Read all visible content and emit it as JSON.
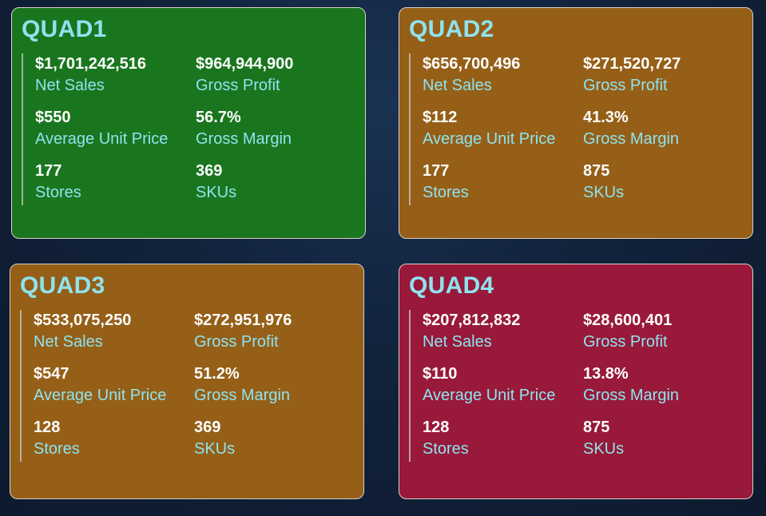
{
  "colors": {
    "green": "#1a761e",
    "orange": "#955f17",
    "red": "#981939",
    "title_accent": "#8fe3ef",
    "value_text": "#ffffff"
  },
  "quadrants": [
    {
      "title": "QUAD1",
      "color": "#1a761e",
      "net_sales": "$1,701,242,516",
      "net_sales_label": "Net Sales",
      "gross_profit": "$964,944,900",
      "gross_profit_label": "Gross Profit",
      "avg_unit_price": "$550",
      "avg_unit_price_label": "Average Unit Price",
      "gross_margin": "56.7%",
      "gross_margin_label": "Gross Margin",
      "stores": "177",
      "stores_label": "Stores",
      "skus": "369",
      "skus_label": "SKUs"
    },
    {
      "title": "QUAD2",
      "color": "#955f17",
      "net_sales": "$656,700,496",
      "net_sales_label": "Net Sales",
      "gross_profit": "$271,520,727",
      "gross_profit_label": "Gross Profit",
      "avg_unit_price": "$112",
      "avg_unit_price_label": "Average Unit Price",
      "gross_margin": "41.3%",
      "gross_margin_label": "Gross Margin",
      "stores": "177",
      "stores_label": "Stores",
      "skus": "875",
      "skus_label": "SKUs"
    },
    {
      "title": "QUAD3",
      "color": "#955f17",
      "net_sales": "$533,075,250",
      "net_sales_label": "Net Sales",
      "gross_profit": "$272,951,976",
      "gross_profit_label": "Gross Profit",
      "avg_unit_price": "$547",
      "avg_unit_price_label": "Average Unit Price",
      "gross_margin": "51.2%",
      "gross_margin_label": "Gross Margin",
      "stores": "128",
      "stores_label": "Stores",
      "skus": "369",
      "skus_label": "SKUs"
    },
    {
      "title": "QUAD4",
      "color": "#981939",
      "net_sales": "$207,812,832",
      "net_sales_label": "Net Sales",
      "gross_profit": "$28,600,401",
      "gross_profit_label": "Gross Profit",
      "avg_unit_price": "$110",
      "avg_unit_price_label": "Average Unit Price",
      "gross_margin": "13.8%",
      "gross_margin_label": "Gross Margin",
      "stores": "128",
      "stores_label": "Stores",
      "skus": "875",
      "skus_label": "SKUs"
    }
  ]
}
